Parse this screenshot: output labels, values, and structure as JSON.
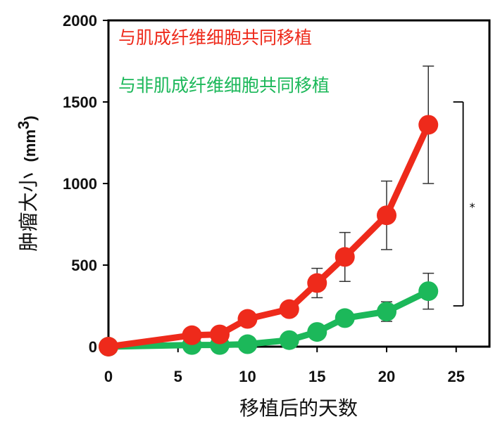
{
  "chart_data": {
    "type": "line",
    "xlabel": "移植后的天数",
    "ylabel": "肿瘤大小",
    "ylabel_unit_base": "(mm",
    "ylabel_unit_exp": "3",
    "ylabel_unit_close": ")",
    "xlim": [
      0,
      27
    ],
    "ylim": [
      0,
      2000
    ],
    "x_ticks": [
      0,
      5,
      10,
      15,
      20,
      25
    ],
    "y_ticks": [
      0,
      500,
      1000,
      1500,
      2000
    ],
    "x_tick_labels": [
      "0",
      "5",
      "10",
      "15",
      "20",
      "25"
    ],
    "y_tick_labels": [
      "0",
      "500",
      "1000",
      "1500",
      "2000"
    ],
    "grid": false,
    "legend_position": "top-left",
    "series": [
      {
        "name": "与肌成纤维细胞共同移植",
        "color": "#ee2a1b",
        "x": [
          0,
          6,
          8,
          10,
          13,
          15,
          17,
          20,
          23
        ],
        "y": [
          0,
          70,
          75,
          170,
          230,
          390,
          550,
          805,
          1360
        ],
        "err": [
          0,
          0,
          0,
          0,
          0,
          90,
          150,
          210,
          360
        ]
      },
      {
        "name": "与非肌成纤维细胞共同移植",
        "color": "#1cb85a",
        "x": [
          0,
          6,
          8,
          10,
          13,
          15,
          17,
          20,
          23
        ],
        "y": [
          0,
          10,
          10,
          15,
          40,
          90,
          175,
          215,
          340
        ],
        "err": [
          0,
          0,
          0,
          0,
          0,
          0,
          45,
          60,
          110
        ]
      }
    ],
    "significance": {
      "label": "*",
      "x": 25.5,
      "y_low": 250,
      "y_high": 1500
    }
  }
}
